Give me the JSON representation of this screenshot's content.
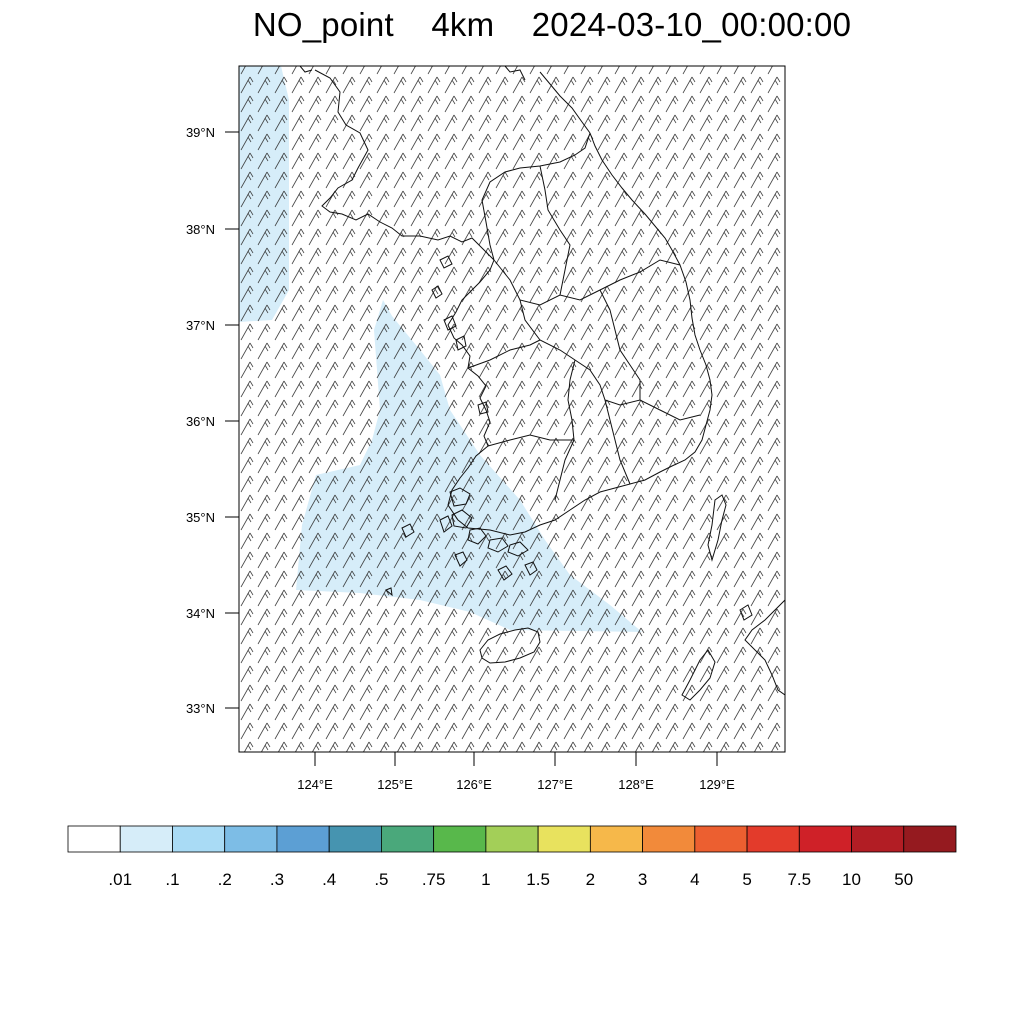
{
  "title": {
    "variable": "NO_point",
    "resolution": "4km",
    "datetime": "2024-03-10_00:00:00"
  },
  "axes": {
    "lat_labels": [
      "39°N",
      "38°N",
      "37°N",
      "36°N",
      "35°N",
      "34°N",
      "33°N"
    ],
    "lon_labels": [
      "124°E",
      "125°E",
      "126°E",
      "127°E",
      "128°E",
      "129°E"
    ],
    "lat_range": [
      32.55,
      39.65
    ],
    "lon_range": [
      123.05,
      129.75
    ]
  },
  "colorbar": {
    "colors": [
      "#ffffff",
      "#d6edf9",
      "#a9dbf5",
      "#7dbde6",
      "#5c9fd4",
      "#4694b0",
      "#4aa87b",
      "#58b84b",
      "#a3cf58",
      "#e8e25e",
      "#f6b84a",
      "#f28a3a",
      "#ec5f30",
      "#e33b2b",
      "#cf2128",
      "#b21d24",
      "#951a1f"
    ],
    "labels": [
      ".01",
      ".1",
      ".2",
      ".3",
      ".4",
      ".5",
      ".75",
      "1",
      "1.5",
      "2",
      "3",
      "4",
      "5",
      "7.5",
      "10",
      "50"
    ]
  },
  "field": {
    "fill_color": "#d6edf9",
    "level": ".01 – .1"
  }
}
